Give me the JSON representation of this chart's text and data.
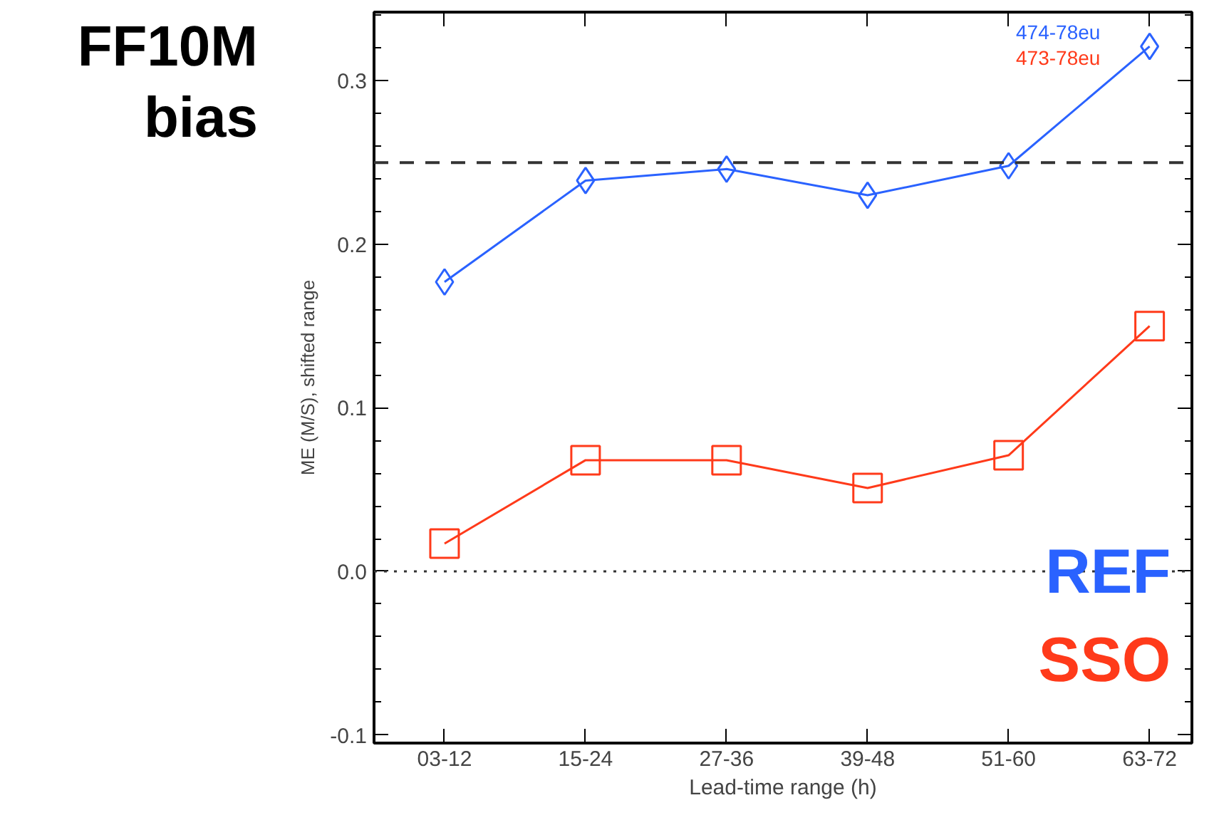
{
  "chart_data": {
    "type": "line",
    "title": "FF10M bias",
    "xlabel": "Lead-time range (h)",
    "ylabel": "ME (M/S), shifted range",
    "categories": [
      "03-12",
      "15-24",
      "27-36",
      "39-48",
      "51-60",
      "63-72"
    ],
    "series": [
      {
        "name": "474-78eu",
        "color": "#2a62ff",
        "values": [
          0.177,
          0.239,
          0.246,
          0.23,
          0.248,
          0.321
        ],
        "marker": "diamond"
      },
      {
        "name": "473-78eu",
        "color": "#ff3a1a",
        "values": [
          0.017,
          0.068,
          0.068,
          0.051,
          0.071,
          0.15
        ],
        "marker": "square"
      }
    ],
    "ylim": [
      -0.105,
      0.342
    ],
    "yticks": [
      {
        "value": -0.1,
        "label": "-0.1"
      },
      {
        "value": 0,
        "label": "0.0"
      },
      {
        "value": 0.1,
        "label": "0.1"
      },
      {
        "value": 0.2,
        "label": "0.2"
      },
      {
        "value": 0.3,
        "label": "0.3"
      }
    ],
    "ref_lines": [
      {
        "axis": "y",
        "value": 0.25,
        "line_style": "dashed"
      },
      {
        "axis": "y",
        "value": 0,
        "line_style": "dotted"
      }
    ],
    "annotations": [
      "REF",
      "SSO"
    ],
    "legend": "top right",
    "grid": false,
    "line_style": "solid"
  }
}
